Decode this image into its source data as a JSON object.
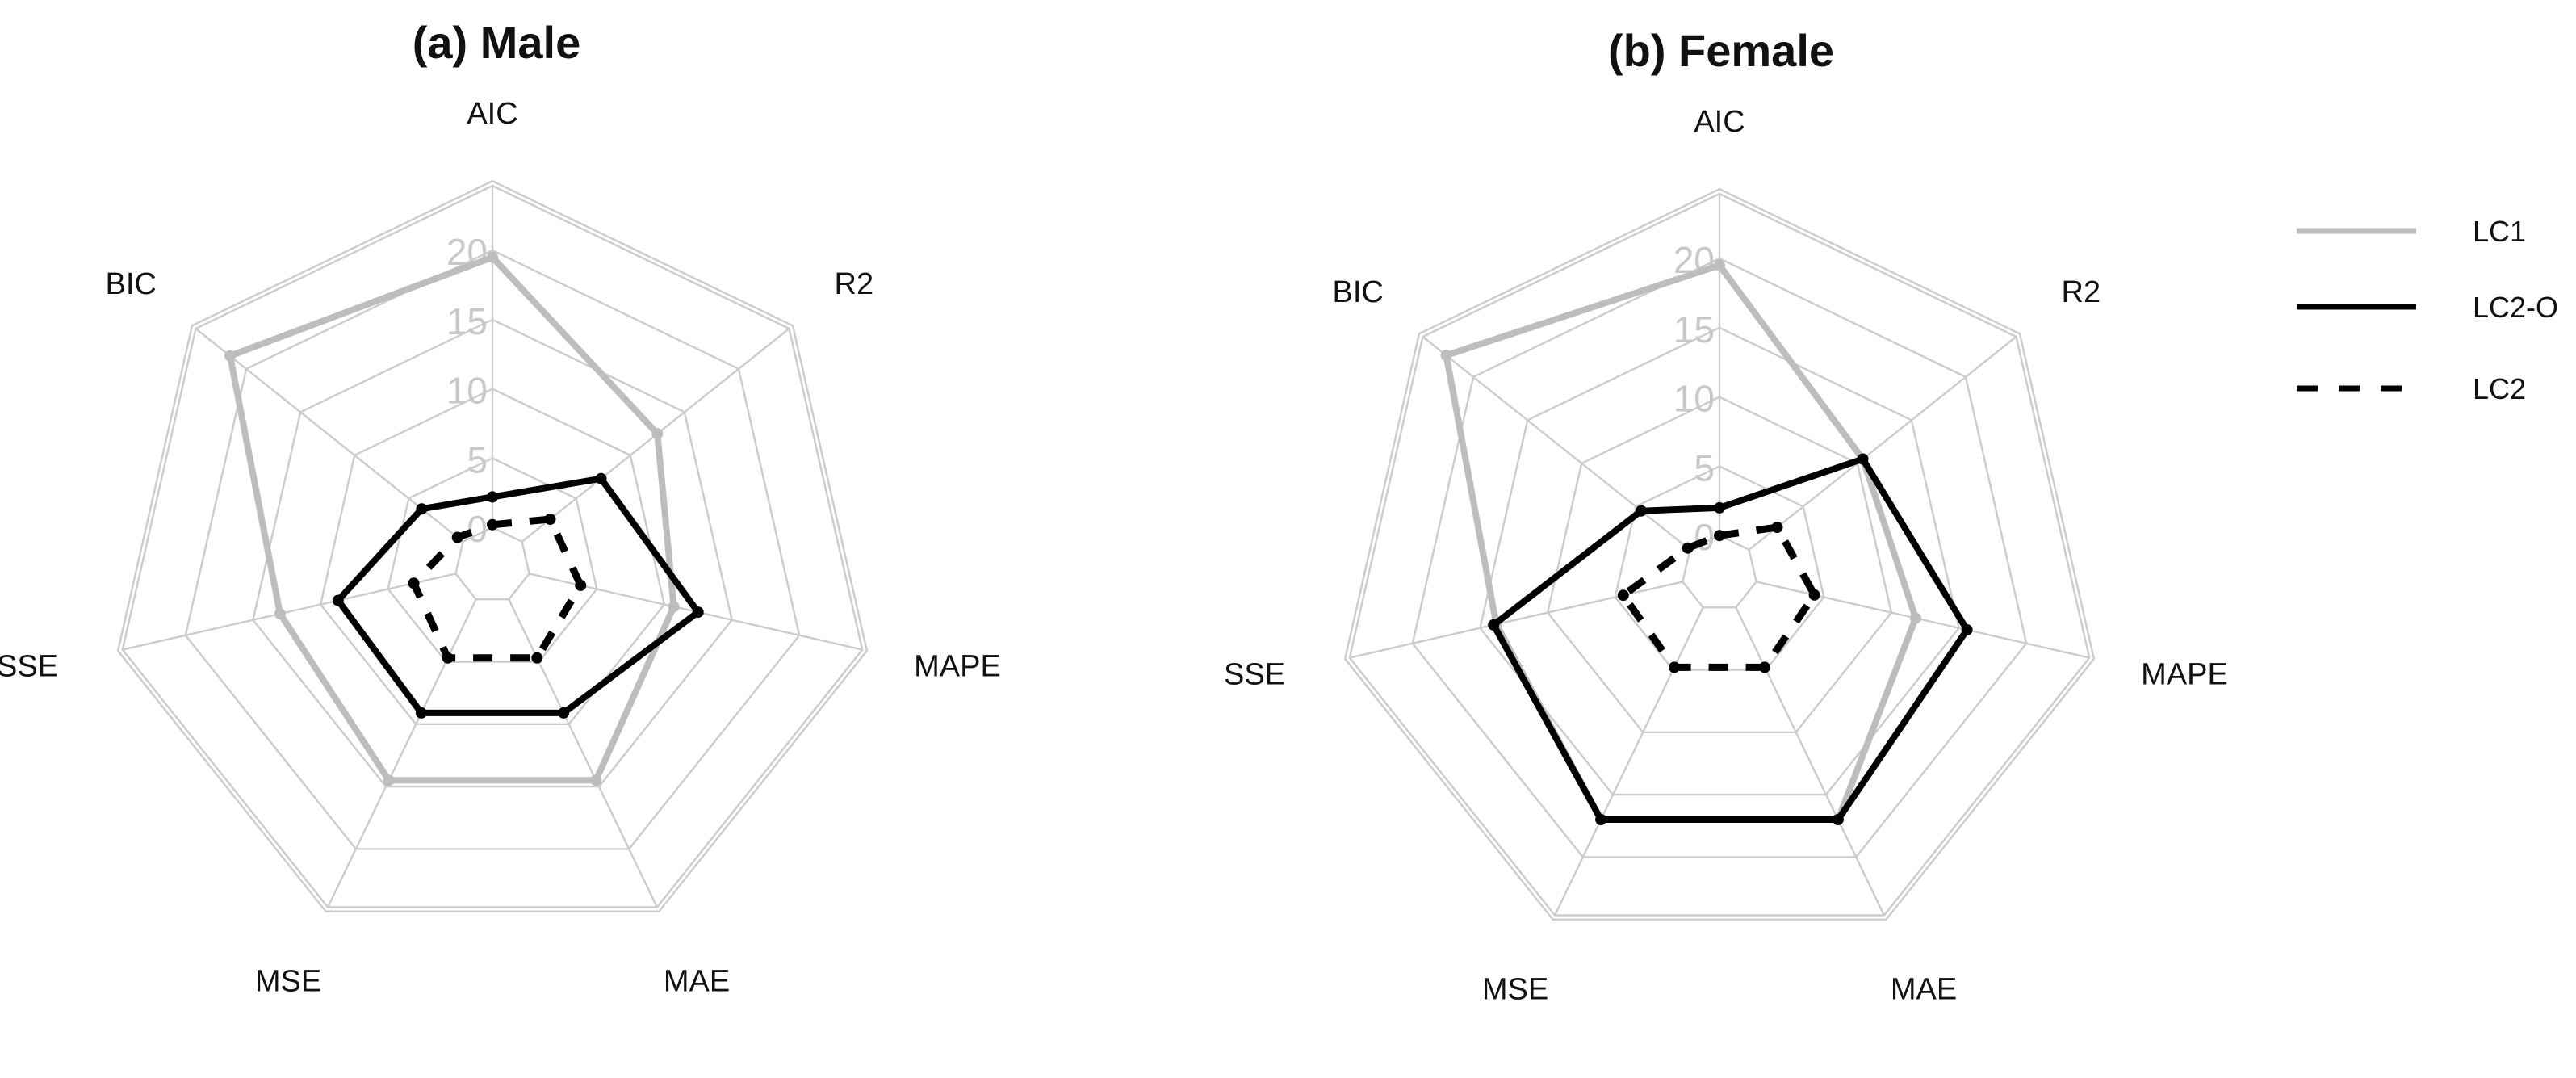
{
  "colors": {
    "LC1": "#bdbdbd",
    "LC2-O": "#000000",
    "LC2": "#000000",
    "grid": "#cccccc"
  },
  "legend": {
    "placement": "right",
    "items": [
      {
        "name": "LC1",
        "style": "solid-gray"
      },
      {
        "name": "LC2-O",
        "style": "solid-black"
      },
      {
        "name": "LC2",
        "style": "dashed-black"
      }
    ]
  },
  "chart_data": [
    {
      "type": "radar",
      "title": "(a) Male",
      "axes": [
        "AIC",
        "R2",
        "MAPE",
        "MAE",
        "MSE",
        "SSE",
        "BIC"
      ],
      "scale": {
        "min": 0,
        "max": 20,
        "ticks": [
          "0",
          "5",
          "10",
          "15",
          "20"
        ]
      },
      "series": [
        {
          "name": "LC1",
          "values": [
            19.5,
            12.5,
            10.7,
            14.5,
            14.5,
            13.0,
            21.5
          ]
        },
        {
          "name": "LC2-O",
          "values": [
            2.2,
            7.3,
            12.5,
            9.1,
            9.1,
            8.7,
            3.8
          ]
        },
        {
          "name": "LC2",
          "values": [
            0.2,
            2.6,
            3.8,
            4.7,
            4.7,
            3.1,
            0.5
          ]
        }
      ]
    },
    {
      "type": "radar",
      "title": "(b) Female",
      "axes": [
        "AIC",
        "R2",
        "MAPE",
        "MAE",
        "MSE",
        "SSE",
        "BIC"
      ],
      "scale": {
        "min": 0,
        "max": 20,
        "ticks": [
          "0",
          "5",
          "10",
          "15",
          "20"
        ]
      },
      "series": [
        {
          "name": "LC1",
          "values": [
            19.5,
            10.5,
            11.8,
            17.0,
            17.0,
            13.8,
            22.5
          ]
        },
        {
          "name": "LC2-O",
          "values": [
            2.0,
            10.5,
            15.6,
            17.0,
            17.0,
            14.0,
            4.5
          ]
        },
        {
          "name": "LC2",
          "values": [
            0.0,
            2.6,
            4.3,
            4.8,
            4.8,
            4.4,
            0.2
          ]
        }
      ]
    }
  ]
}
